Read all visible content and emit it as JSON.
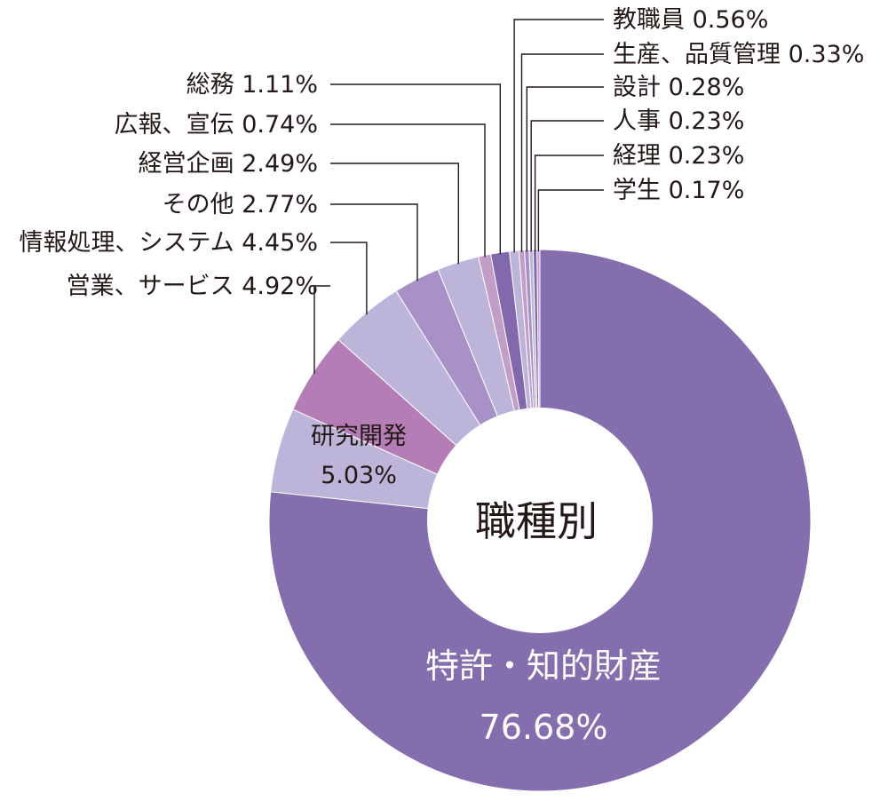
{
  "chart_data": {
    "type": "pie",
    "center_label": "職種別",
    "slices": [
      {
        "label": "特許・知的財産",
        "value": 76.68,
        "value_text": "76.68%",
        "color": "#846ead"
      },
      {
        "label": "研究開発",
        "value": 5.03,
        "value_text": "5.03%",
        "color": "#bcb4d9"
      },
      {
        "label": "営業、サービス",
        "value": 4.92,
        "value_text": "4.92%",
        "color": "#b57db5"
      },
      {
        "label": "情報処理、システム",
        "value": 4.45,
        "value_text": "4.45%",
        "color": "#bcb4d9"
      },
      {
        "label": "その他",
        "value": 2.77,
        "value_text": "2.77%",
        "color": "#a891c6"
      },
      {
        "label": "経営企画",
        "value": 2.49,
        "value_text": "2.49%",
        "color": "#bcb4d9"
      },
      {
        "label": "広報、宣伝",
        "value": 0.74,
        "value_text": "0.74%",
        "color": "#c29dc8"
      },
      {
        "label": "総務",
        "value": 1.11,
        "value_text": "1.11%",
        "color": "#8269ad"
      },
      {
        "label": "教職員",
        "value": 0.56,
        "value_text": "0.56%",
        "color": "#bcb4d9"
      },
      {
        "label": "生産、品質管理",
        "value": 0.33,
        "value_text": "0.33%",
        "color": "#c29dc8"
      },
      {
        "label": "設計",
        "value": 0.28,
        "value_text": "0.28%",
        "color": "#a891c6"
      },
      {
        "label": "人事",
        "value": 0.23,
        "value_text": "0.23%",
        "color": "#bcb4d9"
      },
      {
        "label": "経理",
        "value": 0.23,
        "value_text": "0.23%",
        "color": "#8269ad"
      },
      {
        "label": "学生",
        "value": 0.17,
        "value_text": "0.17%",
        "color": "#c29dc8"
      }
    ]
  }
}
